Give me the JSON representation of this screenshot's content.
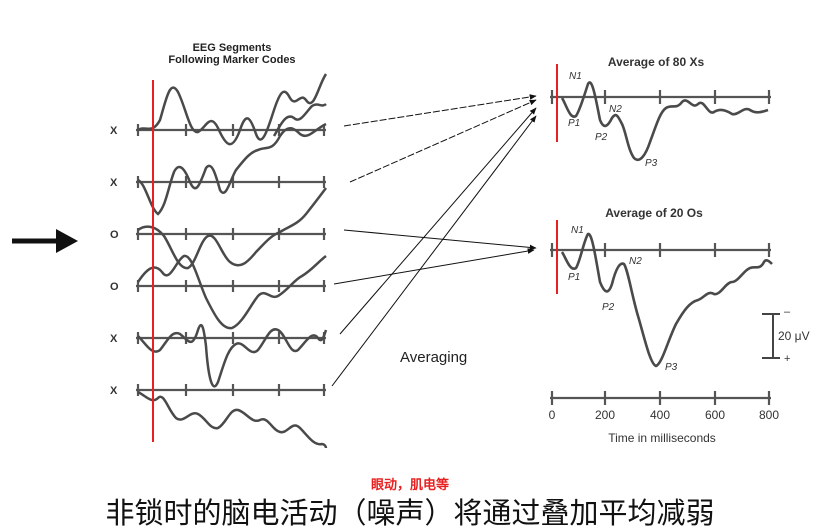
{
  "left_panel": {
    "title_line1": "EEG Segments",
    "title_line2": "Following Marker Codes",
    "row_labels": [
      "X",
      "X",
      "O",
      "O",
      "X",
      "X"
    ]
  },
  "center": {
    "averaging_label": "Averaging"
  },
  "top_plot": {
    "title": "Average of 80 Xs",
    "peaks": [
      "N1",
      "P1",
      "P2",
      "N2",
      "P3"
    ]
  },
  "bottom_plot": {
    "title": "Average of 20 Os",
    "peaks": [
      "N1",
      "P1",
      "P2",
      "N2",
      "P3"
    ]
  },
  "scale_bar": {
    "label": "20 μV",
    "minus": "–",
    "plus": "+"
  },
  "time_axis": {
    "ticks": [
      "0",
      "200",
      "400",
      "600",
      "800"
    ],
    "label": "Time in milliseconds"
  },
  "annotation": "眼动，肌电等",
  "caption": "非锁时的脑电活动（噪声）将通过叠加平均减弱",
  "colors": {
    "onset_line": "#e8201f",
    "trace": "#4a4a4a",
    "text": "#111111"
  }
}
